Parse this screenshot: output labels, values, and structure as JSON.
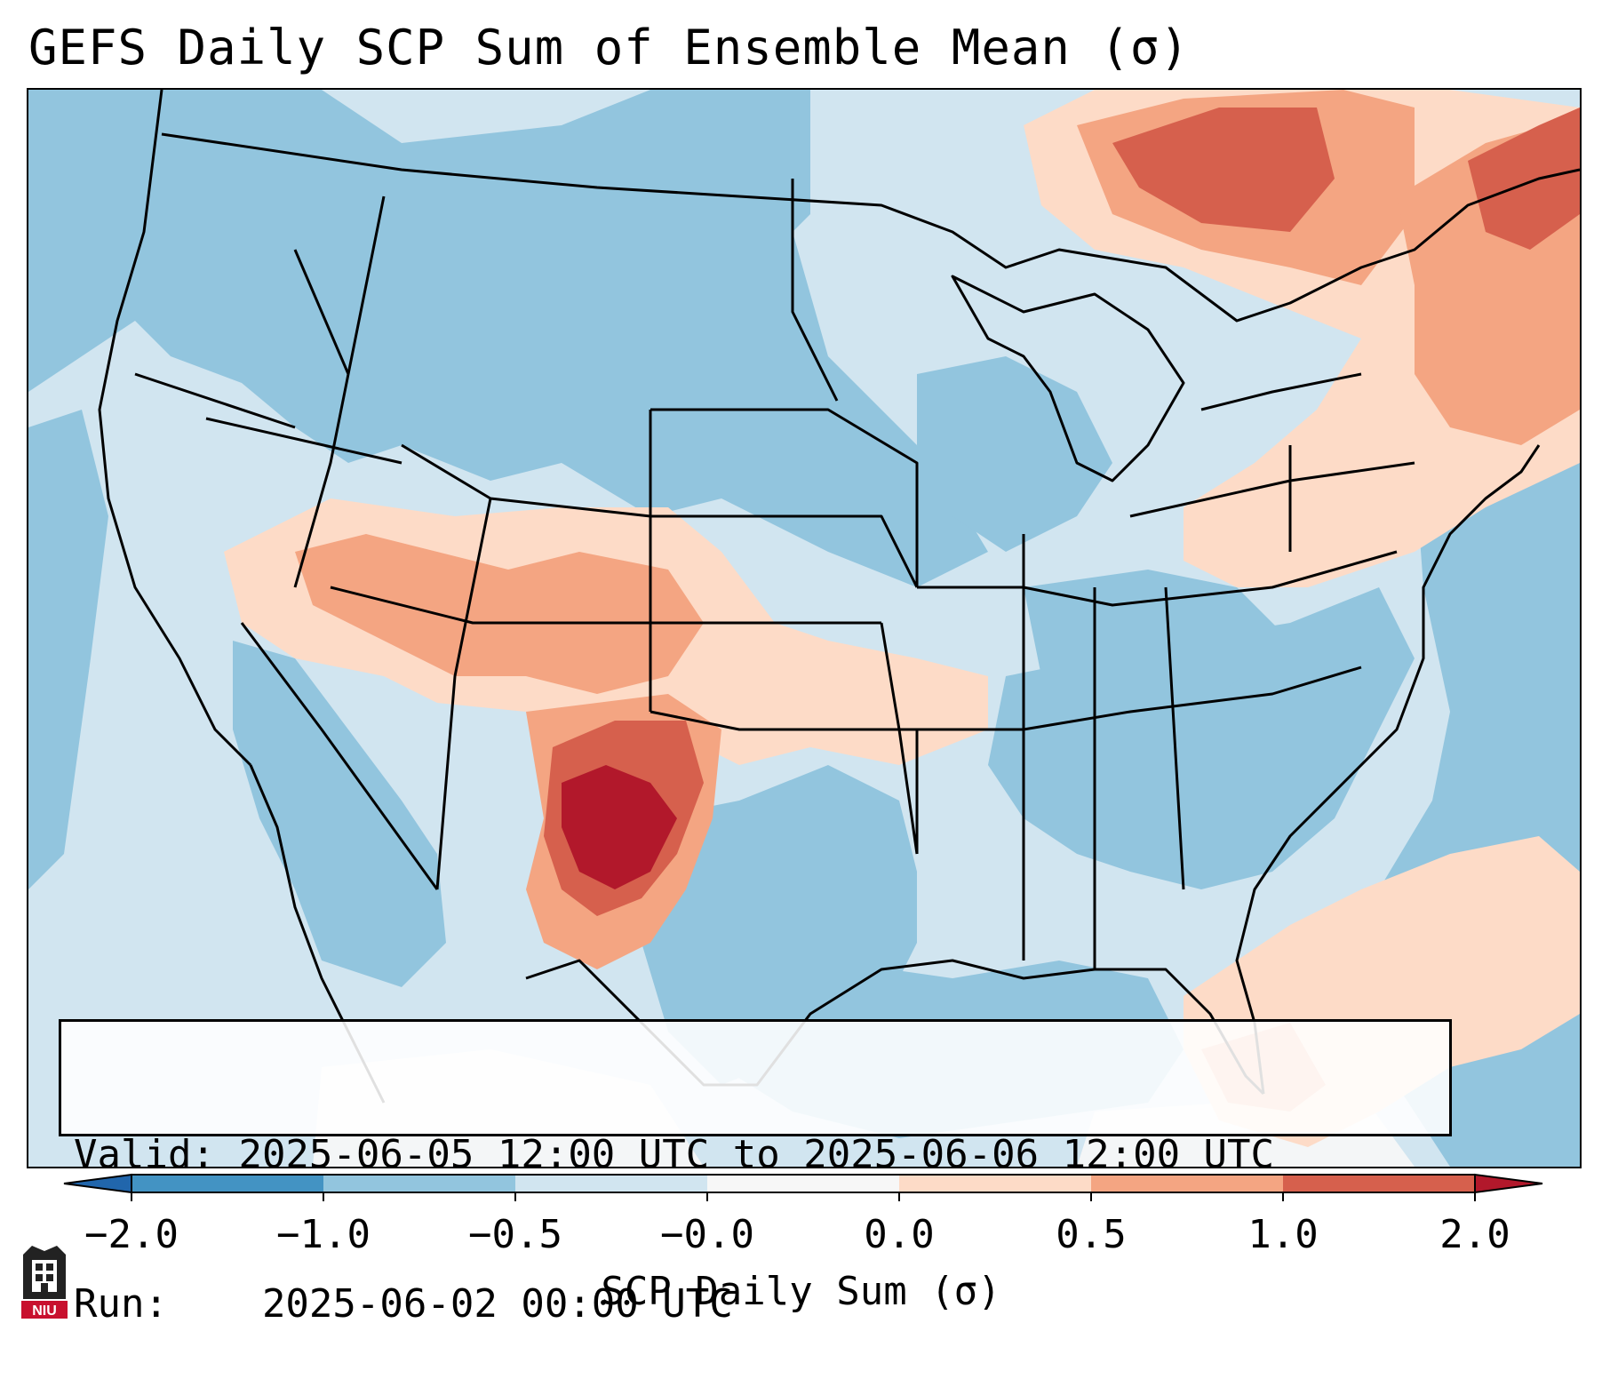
{
  "title": "GEFS Daily SCP Sum of Ensemble Mean (σ)",
  "info": {
    "valid_label": "Valid:",
    "valid_value": "2025-06-05 12:00 UTC to 2025-06-06 12:00 UTC",
    "run_label": "Run:",
    "run_value": "2025-06-02 00:00 UTC"
  },
  "colorbar": {
    "label": "SCP Daily Sum (σ)",
    "ticks": [
      "−2.0",
      "−1.0",
      "−0.5",
      "−0.0",
      "0.0",
      "0.5",
      "1.0",
      "2.0"
    ],
    "colors": [
      "#4393c3",
      "#92c5de",
      "#d1e5f0",
      "#f7f7f7",
      "#fddbc7",
      "#f4a582",
      "#d6604d",
      "#b2182b"
    ],
    "under_color": "#2166ac",
    "over_color": "#b2182b"
  },
  "map": {
    "background_color": "#d1e5f0",
    "region": "Contiguous United States",
    "map_type": "GEFS SCP daily sum anomaly"
  },
  "logo": {
    "text": "NIU"
  }
}
